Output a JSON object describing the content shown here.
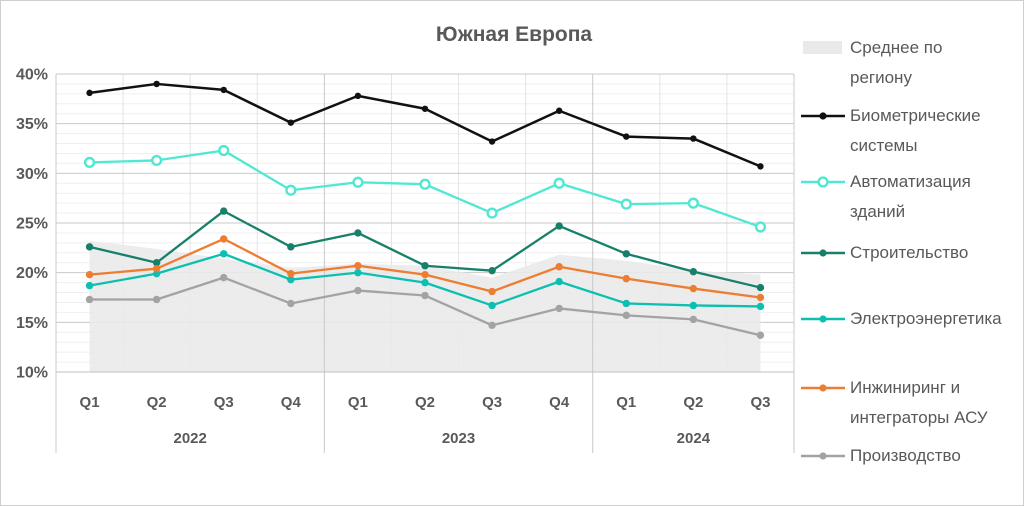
{
  "title": "Южная Европа",
  "colors": {
    "background": "#ffffff",
    "frame_border": "#cfcfcf",
    "title_text": "#595959",
    "axis_text": "#595959",
    "grid_minor": "#efefef",
    "grid_major": "#c9c9c9",
    "grid_vertical": "#e3e3e3",
    "year_separator": "#c9c9c9",
    "axis_line": "#bfbfbf"
  },
  "chart_data": {
    "type": "line",
    "title": "Южная Европа",
    "grid": true,
    "legend_position": "right",
    "categories": [
      "Q1 2022",
      "Q2 2022",
      "Q3 2022",
      "Q4 2022",
      "Q1 2023",
      "Q2 2023",
      "Q3 2023",
      "Q4 2023",
      "Q1 2024",
      "Q2 2024",
      "Q3 2024"
    ],
    "x": {
      "groups": [
        {
          "label": "2022",
          "quarters": [
            "Q1",
            "Q2",
            "Q3",
            "Q4"
          ]
        },
        {
          "label": "2023",
          "quarters": [
            "Q1",
            "Q2",
            "Q3",
            "Q4"
          ]
        },
        {
          "label": "2024",
          "quarters": [
            "Q1",
            "Q2",
            "Q3"
          ]
        }
      ]
    },
    "y_axis": {
      "min": 10,
      "max": 40,
      "major_step": 5,
      "minor_step": 1,
      "tick_labels": [
        "10%",
        "15%",
        "20%",
        "25%",
        "30%",
        "35%",
        "40%"
      ]
    },
    "area_series": {
      "key": "region-average",
      "name": "Среднее по региону",
      "color": "#e9e9e9",
      "values": [
        23.2,
        22.4,
        21.4,
        20.5,
        20.9,
        20.7,
        19.5,
        21.8,
        21.2,
        20.2,
        19.8
      ]
    },
    "series": [
      {
        "key": "biometric-systems",
        "name": "Биометрические системы",
        "color": "#111111",
        "marker": "dot",
        "values": [
          38.1,
          39.0,
          38.4,
          35.1,
          37.8,
          36.5,
          33.2,
          36.3,
          33.7,
          33.5,
          30.7
        ]
      },
      {
        "key": "building-automation",
        "name": "Автоматизация зданий",
        "color": "#4fe8d2",
        "marker": "open-circle",
        "values": [
          31.1,
          31.3,
          32.3,
          28.3,
          29.1,
          28.9,
          26.0,
          29.0,
          26.9,
          27.0,
          24.6
        ]
      },
      {
        "key": "construction",
        "name": "Строительство",
        "color": "#18806a",
        "marker": "dot",
        "values": [
          22.6,
          21.0,
          26.2,
          22.6,
          24.0,
          20.7,
          20.2,
          24.7,
          21.9,
          20.1,
          18.5
        ]
      },
      {
        "key": "electric-power",
        "name": "Электроэнергетика",
        "color": "#0cbfb0",
        "marker": "dot",
        "values": [
          18.7,
          19.9,
          21.9,
          19.3,
          20.0,
          19.0,
          16.7,
          19.1,
          16.9,
          16.7,
          16.6
        ]
      },
      {
        "key": "engineering-integrators",
        "name": "Инжиниринг и интеграторы АСУ",
        "color": "#ed7d31",
        "marker": "dot",
        "values": [
          19.8,
          20.4,
          23.4,
          19.9,
          20.7,
          19.8,
          18.1,
          20.6,
          19.4,
          18.4,
          17.5
        ]
      },
      {
        "key": "manufacturing",
        "name": "Производство",
        "color": "#a3a3a3",
        "marker": "dot",
        "values": [
          17.3,
          17.3,
          19.5,
          16.9,
          18.2,
          17.7,
          14.7,
          16.4,
          15.7,
          15.3,
          13.7
        ]
      }
    ]
  }
}
